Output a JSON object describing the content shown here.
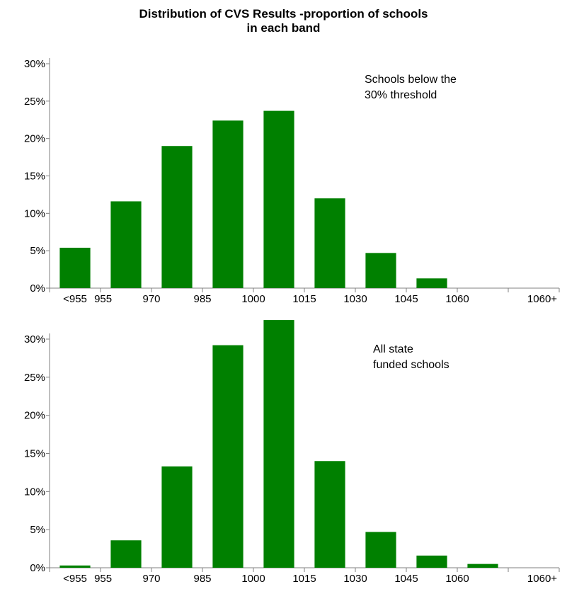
{
  "title_lines": [
    "Distribution of CVS Results -proportion of schools",
    "in each band"
  ],
  "colors": {
    "bar": "#008000",
    "axis": "#808080"
  },
  "chart_data": [
    {
      "type": "bar",
      "annotation": [
        "Schools below the",
        "30% threshold"
      ],
      "categories": [
        "<955",
        "955",
        "970",
        "985",
        "1000",
        "1015",
        "1030",
        "1045",
        "1060",
        "1060+"
      ],
      "values": [
        5.4,
        11.6,
        19.0,
        22.4,
        23.7,
        12.0,
        4.7,
        1.3,
        0,
        0
      ],
      "ylim": [
        0,
        30
      ],
      "yticks": [
        "0%",
        "5%",
        "10%",
        "15%",
        "20%",
        "25%",
        "30%"
      ]
    },
    {
      "type": "bar",
      "annotation": [
        "All state",
        "funded schools"
      ],
      "categories": [
        "<955",
        "955",
        "970",
        "985",
        "1000",
        "1015",
        "1030",
        "1045",
        "1060",
        "1060+"
      ],
      "values": [
        0.3,
        3.6,
        13.3,
        29.2,
        32.5,
        14.0,
        4.7,
        1.6,
        0.5,
        0
      ],
      "ylim": [
        0,
        30
      ],
      "yticks": [
        "0%",
        "5%",
        "10%",
        "15%",
        "20%",
        "25%",
        "30%"
      ]
    }
  ]
}
